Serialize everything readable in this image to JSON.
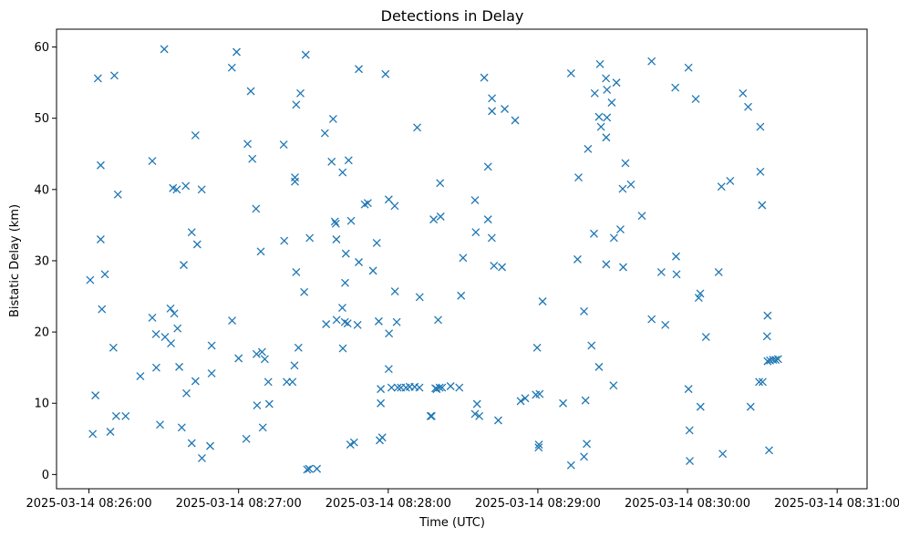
{
  "chart_data": {
    "type": "scatter",
    "title": "Detections in Delay",
    "xlabel": "Time (UTC)",
    "ylabel": "Bistatic Delay (km)",
    "x_unit": "seconds after 2025-03-14 08:26:00",
    "xlim": [
      -13,
      312
    ],
    "ylim": [
      -2,
      62.5
    ],
    "x_ticks": [
      {
        "value": 0,
        "label": "2025-03-14 08:26:00"
      },
      {
        "value": 60,
        "label": "2025-03-14 08:27:00"
      },
      {
        "value": 120,
        "label": "2025-03-14 08:28:00"
      },
      {
        "value": 180,
        "label": "2025-03-14 08:29:00"
      },
      {
        "value": 240,
        "label": "2025-03-14 08:30:00"
      },
      {
        "value": 300,
        "label": "2025-03-14 08:31:00"
      }
    ],
    "y_ticks": [
      {
        "value": 0,
        "label": "0"
      },
      {
        "value": 10,
        "label": "10"
      },
      {
        "value": 20,
        "label": "20"
      },
      {
        "value": 30,
        "label": "30"
      },
      {
        "value": 40,
        "label": "40"
      },
      {
        "value": 50,
        "label": "50"
      },
      {
        "value": 60,
        "label": "60"
      }
    ],
    "grid": false,
    "marker": "x",
    "color": "#1f77b4",
    "points": [
      [
        0.5,
        27.3
      ],
      [
        1.5,
        5.7
      ],
      [
        2.6,
        11.1
      ],
      [
        3.6,
        55.6
      ],
      [
        4.7,
        33.0
      ],
      [
        4.7,
        43.4
      ],
      [
        5.2,
        23.2
      ],
      [
        6.4,
        28.1
      ],
      [
        8.6,
        6.0
      ],
      [
        9.8,
        17.8
      ],
      [
        10.2,
        56.0
      ],
      [
        10.9,
        8.2
      ],
      [
        11.6,
        39.3
      ],
      [
        14.7,
        8.2
      ],
      [
        20.6,
        13.8
      ],
      [
        25.4,
        44.0
      ],
      [
        25.4,
        22.0
      ],
      [
        26.9,
        19.7
      ],
      [
        27.0,
        15.0
      ],
      [
        28.5,
        7.0
      ],
      [
        30.2,
        59.7
      ],
      [
        30.5,
        19.3
      ],
      [
        32.7,
        23.3
      ],
      [
        32.9,
        18.4
      ],
      [
        33.7,
        40.2
      ],
      [
        34.2,
        22.6
      ],
      [
        35.2,
        40.0
      ],
      [
        35.5,
        20.5
      ],
      [
        36.2,
        15.1
      ],
      [
        37.2,
        6.6
      ],
      [
        38.0,
        29.4
      ],
      [
        38.8,
        40.5
      ],
      [
        39.1,
        11.4
      ],
      [
        41.2,
        34.0
      ],
      [
        41.2,
        4.4
      ],
      [
        42.7,
        47.6
      ],
      [
        42.7,
        13.1
      ],
      [
        43.4,
        32.3
      ],
      [
        45.2,
        40.0
      ],
      [
        45.3,
        2.3
      ],
      [
        48.6,
        4.0
      ],
      [
        49.2,
        14.2
      ],
      [
        49.2,
        18.1
      ],
      [
        57.3,
        57.1
      ],
      [
        57.4,
        21.6
      ],
      [
        59.2,
        59.3
      ],
      [
        60.0,
        16.3
      ],
      [
        63.1,
        5.0
      ],
      [
        63.6,
        46.4
      ],
      [
        64.9,
        53.8
      ],
      [
        65.5,
        44.3
      ],
      [
        67.0,
        37.3
      ],
      [
        67.2,
        16.9
      ],
      [
        67.4,
        9.7
      ],
      [
        68.9,
        31.3
      ],
      [
        69.4,
        17.2
      ],
      [
        69.7,
        6.6
      ],
      [
        70.5,
        16.2
      ],
      [
        71.9,
        13.0
      ],
      [
        72.3,
        9.9
      ],
      [
        78.1,
        46.3
      ],
      [
        78.3,
        32.8
      ],
      [
        79.3,
        13.0
      ],
      [
        81.6,
        13.0
      ],
      [
        82.4,
        15.3
      ],
      [
        82.6,
        41.1
      ],
      [
        82.6,
        41.7
      ],
      [
        83.1,
        51.9
      ],
      [
        83.1,
        28.4
      ],
      [
        84.0,
        17.8
      ],
      [
        84.8,
        53.5
      ],
      [
        86.3,
        25.6
      ],
      [
        86.9,
        58.9
      ],
      [
        87.5,
        0.7
      ],
      [
        88.3,
        0.8
      ],
      [
        88.5,
        33.2
      ],
      [
        91.4,
        0.8
      ],
      [
        94.6,
        47.9
      ],
      [
        95.1,
        21.1
      ],
      [
        97.3,
        43.9
      ],
      [
        97.9,
        49.9
      ],
      [
        98.6,
        35.5
      ],
      [
        99.0,
        35.2
      ],
      [
        99.2,
        33.0
      ],
      [
        99.3,
        21.7
      ],
      [
        101.6,
        23.4
      ],
      [
        101.7,
        42.4
      ],
      [
        101.8,
        17.7
      ],
      [
        102.6,
        21.4
      ],
      [
        102.7,
        26.9
      ],
      [
        103.0,
        31.0
      ],
      [
        103.7,
        21.2
      ],
      [
        104.1,
        44.1
      ],
      [
        104.8,
        4.2
      ],
      [
        105.1,
        35.6
      ],
      [
        106.3,
        4.5
      ],
      [
        107.7,
        21.0
      ],
      [
        108.2,
        29.8
      ],
      [
        108.2,
        56.9
      ],
      [
        110.6,
        37.9
      ],
      [
        111.8,
        38.1
      ],
      [
        113.9,
        28.6
      ],
      [
        115.4,
        32.5
      ],
      [
        116.2,
        21.5
      ],
      [
        116.6,
        4.8
      ],
      [
        117.0,
        12.0
      ],
      [
        117.0,
        10.0
      ],
      [
        117.6,
        5.2
      ],
      [
        118.9,
        56.2
      ],
      [
        120.2,
        38.6
      ],
      [
        120.2,
        14.8
      ],
      [
        120.3,
        19.8
      ],
      [
        121.3,
        12.2
      ],
      [
        122.6,
        37.7
      ],
      [
        122.7,
        25.7
      ],
      [
        123.4,
        21.4
      ],
      [
        123.8,
        12.2
      ],
      [
        125.1,
        12.2
      ],
      [
        127.1,
        12.2
      ],
      [
        128.6,
        12.3
      ],
      [
        130.6,
        12.3
      ],
      [
        131.6,
        48.7
      ],
      [
        132.5,
        12.2
      ],
      [
        132.6,
        24.9
      ],
      [
        137.0,
        8.2
      ],
      [
        137.4,
        8.2
      ],
      [
        138.2,
        35.8
      ],
      [
        138.9,
        12.1
      ],
      [
        139.4,
        12.0
      ],
      [
        140.0,
        21.7
      ],
      [
        140.6,
        12.2
      ],
      [
        140.8,
        40.9
      ],
      [
        141.0,
        36.2
      ],
      [
        141.6,
        12.2
      ],
      [
        145.0,
        12.4
      ],
      [
        148.5,
        12.2
      ],
      [
        149.2,
        25.1
      ],
      [
        150.0,
        30.4
      ],
      [
        154.8,
        8.5
      ],
      [
        154.8,
        38.5
      ],
      [
        155.1,
        34.0
      ],
      [
        155.6,
        9.9
      ],
      [
        156.5,
        8.2
      ],
      [
        158.5,
        55.7
      ],
      [
        160.0,
        43.2
      ],
      [
        160.0,
        35.8
      ],
      [
        161.5,
        33.2
      ],
      [
        161.6,
        51.0
      ],
      [
        161.6,
        52.8
      ],
      [
        162.4,
        29.3
      ],
      [
        164.1,
        7.6
      ],
      [
        165.6,
        29.1
      ],
      [
        166.7,
        51.3
      ],
      [
        170.9,
        49.7
      ],
      [
        173.1,
        10.3
      ],
      [
        174.9,
        10.7
      ],
      [
        179.2,
        11.2
      ],
      [
        179.7,
        17.8
      ],
      [
        180.3,
        3.8
      ],
      [
        180.4,
        4.2
      ],
      [
        180.7,
        11.3
      ],
      [
        181.9,
        24.3
      ],
      [
        190.1,
        10.0
      ],
      [
        193.3,
        1.3
      ],
      [
        193.3,
        56.3
      ],
      [
        195.9,
        30.2
      ],
      [
        196.3,
        41.7
      ],
      [
        198.5,
        22.9
      ],
      [
        198.5,
        2.5
      ],
      [
        199.1,
        10.4
      ],
      [
        199.6,
        4.3
      ],
      [
        200.1,
        45.7
      ],
      [
        201.5,
        18.1
      ],
      [
        202.5,
        33.8
      ],
      [
        202.8,
        53.5
      ],
      [
        204.5,
        50.2
      ],
      [
        204.5,
        15.1
      ],
      [
        204.9,
        57.6
      ],
      [
        205.3,
        48.8
      ],
      [
        207.3,
        55.6
      ],
      [
        207.4,
        47.3
      ],
      [
        207.4,
        29.5
      ],
      [
        207.7,
        50.1
      ],
      [
        207.7,
        54.0
      ],
      [
        209.6,
        52.2
      ],
      [
        210.3,
        12.5
      ],
      [
        210.5,
        33.2
      ],
      [
        211.5,
        55.0
      ],
      [
        213.1,
        34.4
      ],
      [
        214.0,
        40.1
      ],
      [
        214.2,
        29.1
      ],
      [
        215.1,
        43.7
      ],
      [
        217.3,
        40.7
      ],
      [
        221.7,
        36.3
      ],
      [
        225.6,
        58.0
      ],
      [
        225.6,
        21.8
      ],
      [
        229.5,
        28.4
      ],
      [
        231.1,
        21.0
      ],
      [
        235.1,
        54.3
      ],
      [
        235.4,
        30.6
      ],
      [
        235.6,
        28.1
      ],
      [
        240.4,
        57.1
      ],
      [
        240.4,
        12.0
      ],
      [
        240.8,
        6.2
      ],
      [
        240.9,
        1.9
      ],
      [
        243.3,
        52.7
      ],
      [
        244.5,
        24.8
      ],
      [
        245.1,
        25.4
      ],
      [
        245.2,
        9.5
      ],
      [
        247.4,
        19.3
      ],
      [
        252.5,
        28.4
      ],
      [
        253.6,
        40.4
      ],
      [
        254.1,
        2.9
      ],
      [
        257.1,
        41.2
      ],
      [
        262.2,
        53.5
      ],
      [
        264.3,
        51.6
      ],
      [
        265.3,
        9.5
      ],
      [
        268.7,
        13.0
      ],
      [
        269.2,
        42.5
      ],
      [
        269.2,
        48.8
      ],
      [
        269.9,
        37.8
      ],
      [
        270.1,
        13.0
      ],
      [
        271.9,
        19.4
      ],
      [
        272.1,
        22.3
      ],
      [
        272.1,
        15.9
      ],
      [
        272.7,
        3.4
      ],
      [
        273.1,
        16.0
      ],
      [
        274.3,
        16.1
      ],
      [
        275.3,
        16.1
      ],
      [
        276.3,
        16.2
      ]
    ]
  }
}
